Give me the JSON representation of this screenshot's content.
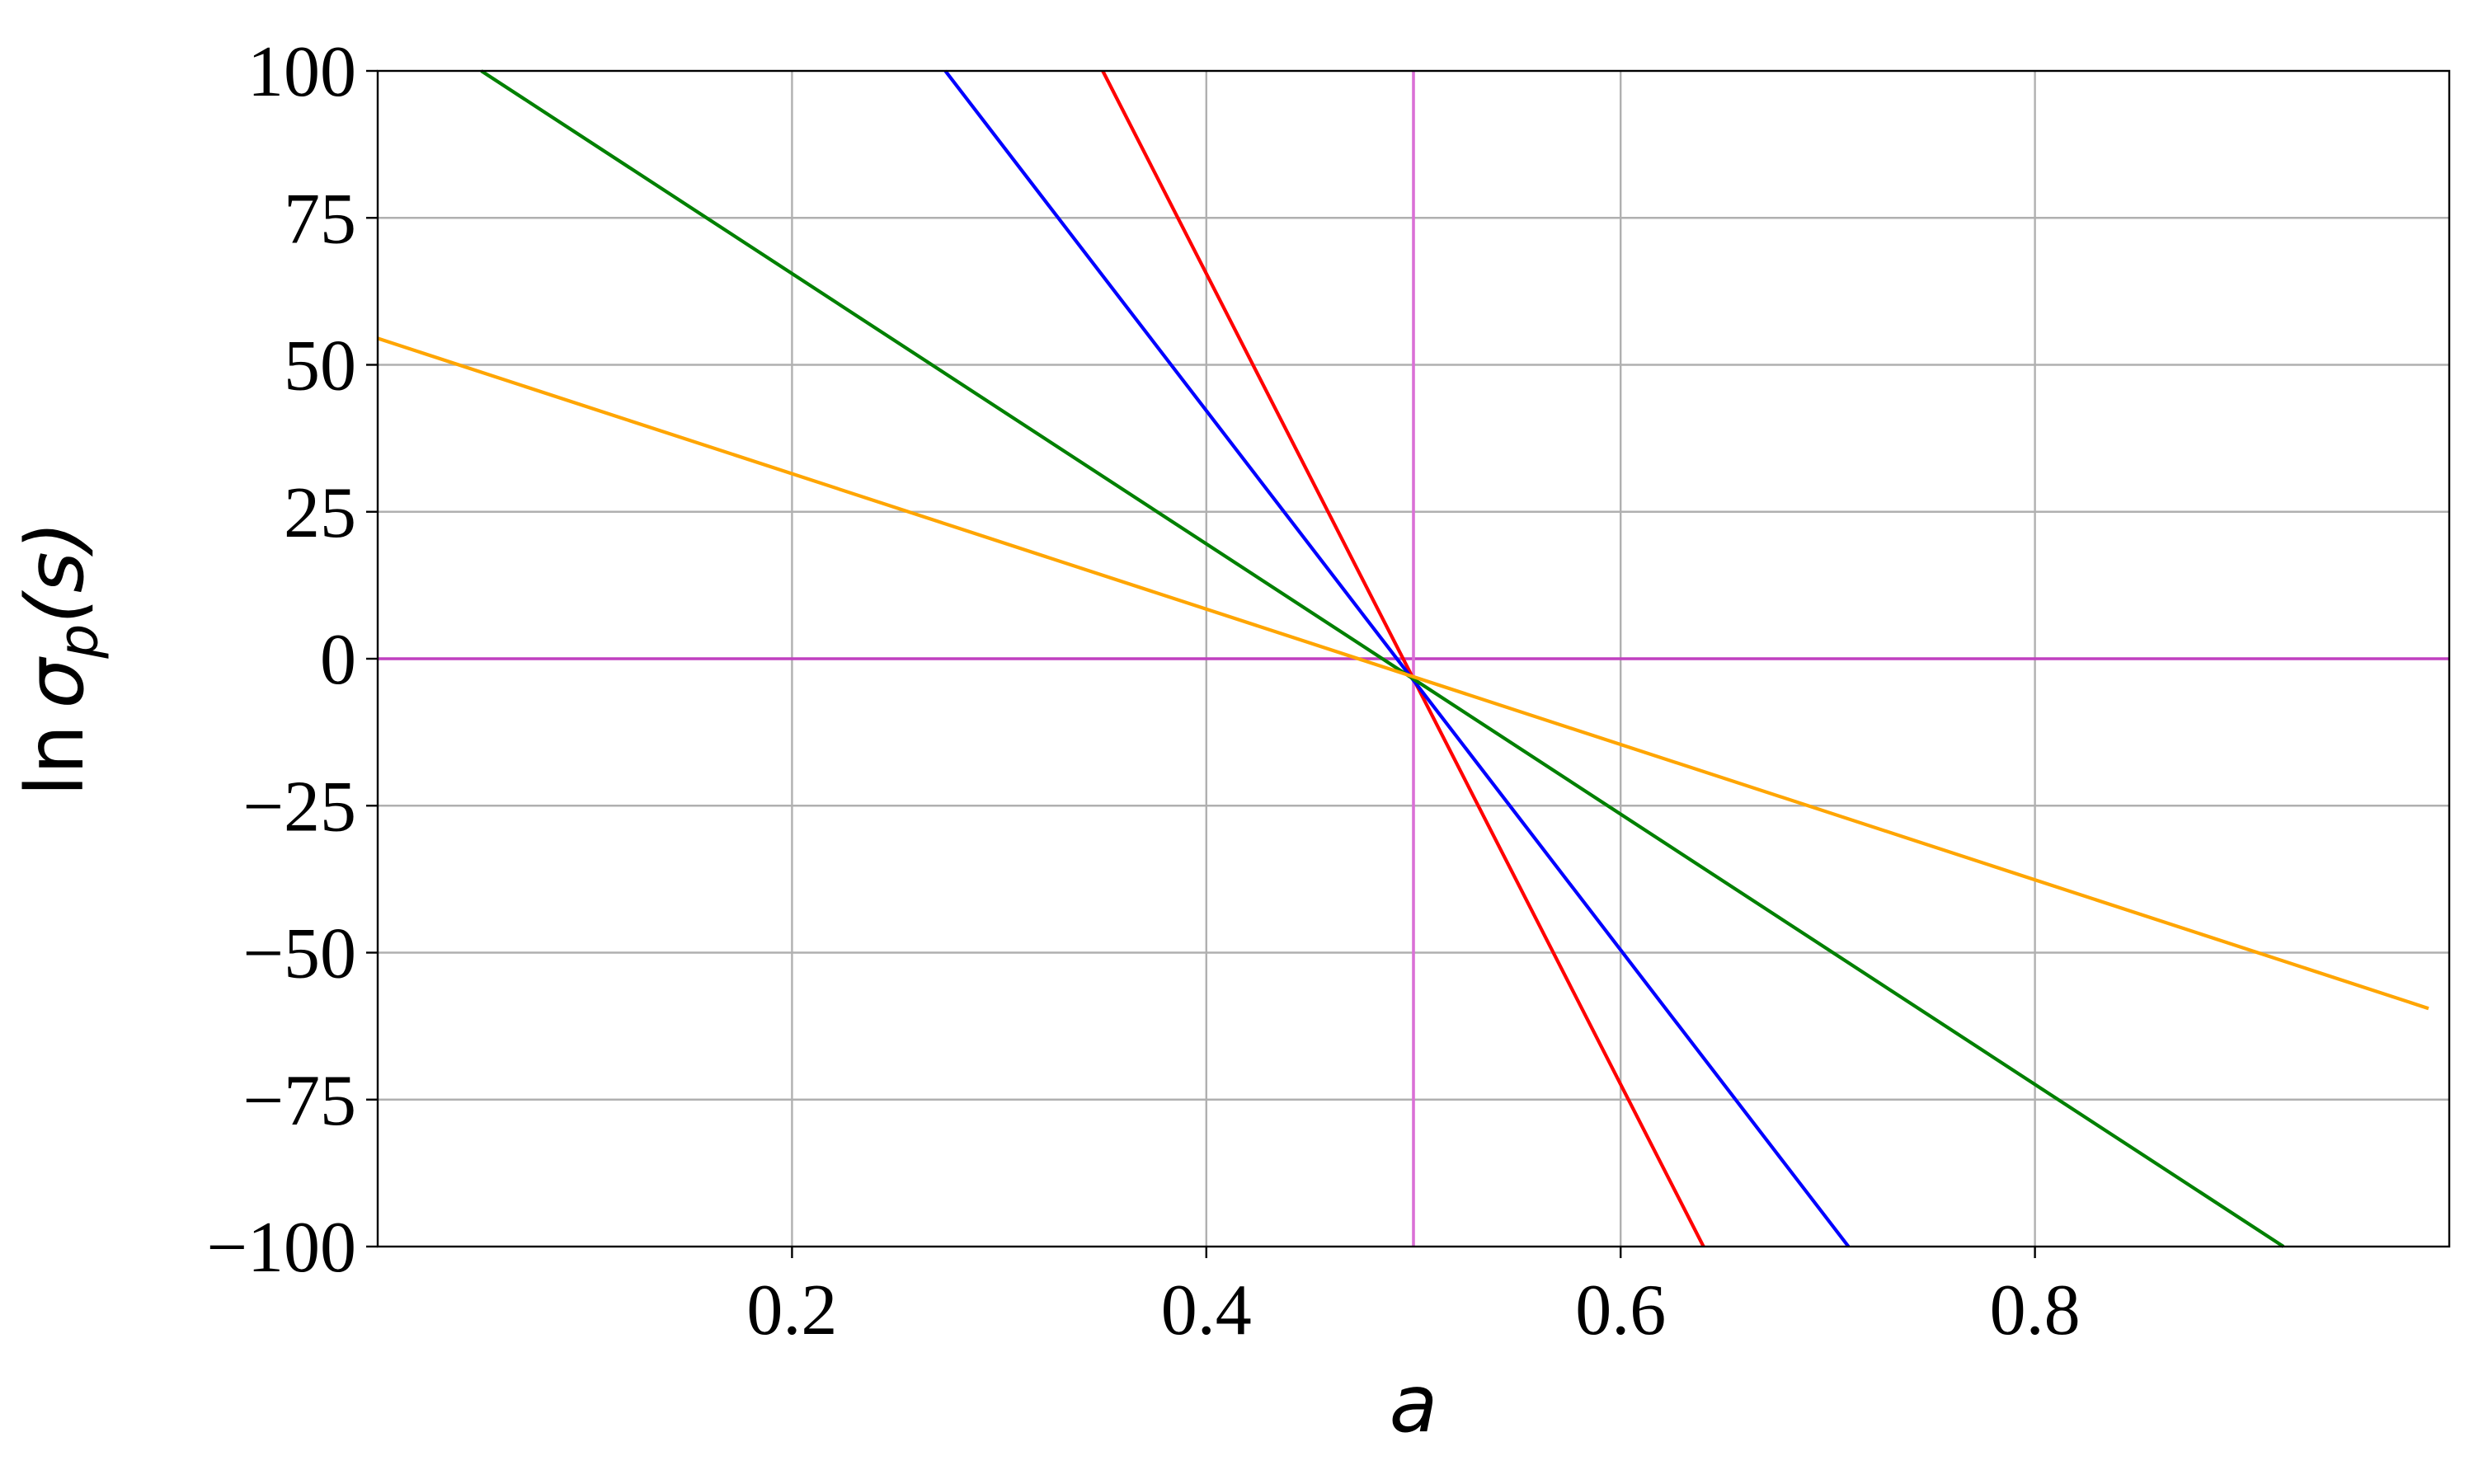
{
  "chart_data": {
    "type": "line",
    "title": "",
    "xlabel": "a",
    "ylabel": "ln σ_p(s)",
    "xlim": [
      0.0,
      1.0
    ],
    "ylim": [
      -100,
      100
    ],
    "xticks": [
      0.2,
      0.4,
      0.6,
      0.8
    ],
    "xtick_labels": [
      "0.2",
      "0.4",
      "0.6",
      "0.8"
    ],
    "yticks": [
      100,
      75,
      50,
      25,
      0,
      -25,
      -50,
      -75,
      -100
    ],
    "ytick_labels": [
      "100",
      "75",
      "50",
      "25",
      "0",
      "−25",
      "−50",
      "−75",
      "−100"
    ],
    "grid": true,
    "legend": "none",
    "reference_lines": [
      {
        "orientation": "horizontal",
        "value": 0,
        "color": "#c040c0"
      },
      {
        "orientation": "vertical",
        "value": 0.5,
        "color": "#da70d6"
      }
    ],
    "series": [
      {
        "color": "#ff0000",
        "x": [
          0.35,
          0.64
        ],
        "y": [
          100,
          -100
        ]
      },
      {
        "color": "#0000ff",
        "x": [
          0.274,
          0.71
        ],
        "y": [
          100,
          -100
        ]
      },
      {
        "color": "#008000",
        "x": [
          0.05,
          0.92
        ],
        "y": [
          100,
          -100
        ]
      },
      {
        "color": "#ffa500",
        "x": [
          0.0,
          0.99
        ],
        "y": [
          54.5,
          -59.5
        ]
      }
    ]
  }
}
